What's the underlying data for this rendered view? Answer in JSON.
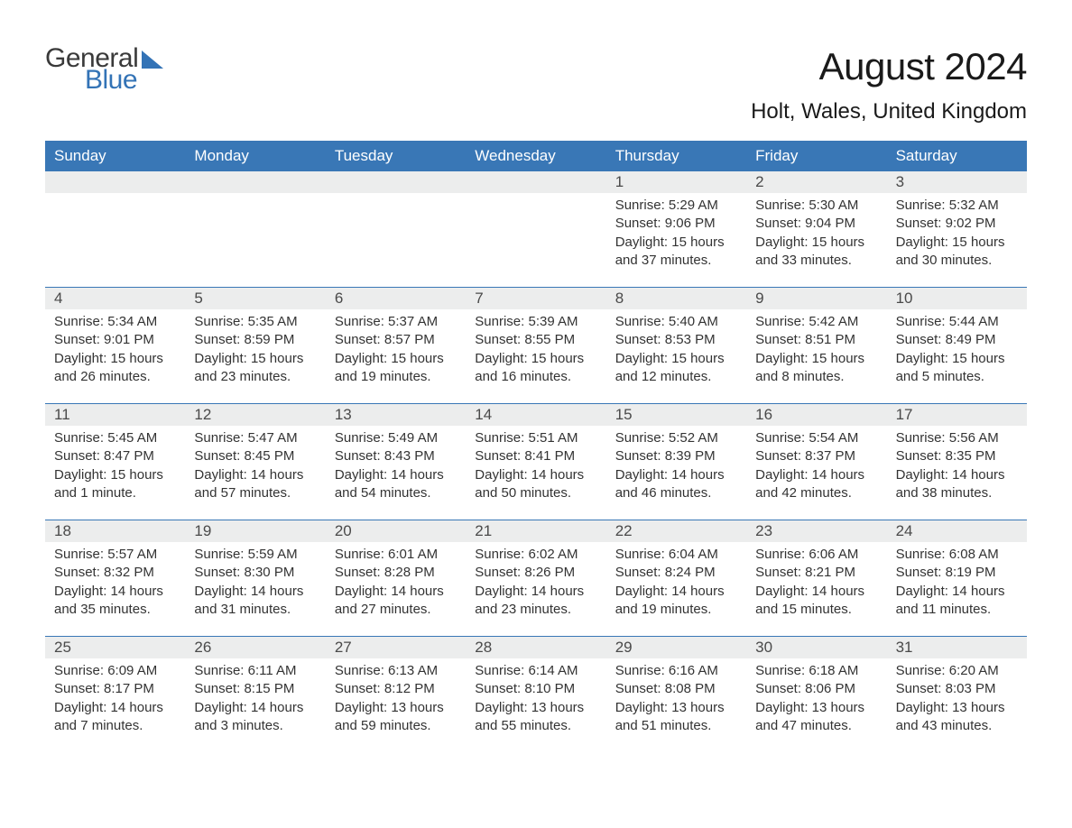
{
  "brand": {
    "word1": "General",
    "word2": "Blue",
    "accent_color": "#3373b6",
    "text_color": "#3a3a3a"
  },
  "header": {
    "month_title": "August 2024",
    "location": "Holt, Wales, United Kingdom"
  },
  "calendar": {
    "day_names": [
      "Sunday",
      "Monday",
      "Tuesday",
      "Wednesday",
      "Thursday",
      "Friday",
      "Saturday"
    ],
    "header_bg": "#3977b6",
    "header_fg": "#ffffff",
    "date_bar_bg": "#eceded",
    "week_border_color": "#3977b6",
    "text_color": "#333333",
    "font_size_body": 15,
    "weeks": [
      [
        null,
        null,
        null,
        null,
        {
          "date": "1",
          "sunrise": "Sunrise: 5:29 AM",
          "sunset": "Sunset: 9:06 PM",
          "daylight": "Daylight: 15 hours and 37 minutes."
        },
        {
          "date": "2",
          "sunrise": "Sunrise: 5:30 AM",
          "sunset": "Sunset: 9:04 PM",
          "daylight": "Daylight: 15 hours and 33 minutes."
        },
        {
          "date": "3",
          "sunrise": "Sunrise: 5:32 AM",
          "sunset": "Sunset: 9:02 PM",
          "daylight": "Daylight: 15 hours and 30 minutes."
        }
      ],
      [
        {
          "date": "4",
          "sunrise": "Sunrise: 5:34 AM",
          "sunset": "Sunset: 9:01 PM",
          "daylight": "Daylight: 15 hours and 26 minutes."
        },
        {
          "date": "5",
          "sunrise": "Sunrise: 5:35 AM",
          "sunset": "Sunset: 8:59 PM",
          "daylight": "Daylight: 15 hours and 23 minutes."
        },
        {
          "date": "6",
          "sunrise": "Sunrise: 5:37 AM",
          "sunset": "Sunset: 8:57 PM",
          "daylight": "Daylight: 15 hours and 19 minutes."
        },
        {
          "date": "7",
          "sunrise": "Sunrise: 5:39 AM",
          "sunset": "Sunset: 8:55 PM",
          "daylight": "Daylight: 15 hours and 16 minutes."
        },
        {
          "date": "8",
          "sunrise": "Sunrise: 5:40 AM",
          "sunset": "Sunset: 8:53 PM",
          "daylight": "Daylight: 15 hours and 12 minutes."
        },
        {
          "date": "9",
          "sunrise": "Sunrise: 5:42 AM",
          "sunset": "Sunset: 8:51 PM",
          "daylight": "Daylight: 15 hours and 8 minutes."
        },
        {
          "date": "10",
          "sunrise": "Sunrise: 5:44 AM",
          "sunset": "Sunset: 8:49 PM",
          "daylight": "Daylight: 15 hours and 5 minutes."
        }
      ],
      [
        {
          "date": "11",
          "sunrise": "Sunrise: 5:45 AM",
          "sunset": "Sunset: 8:47 PM",
          "daylight": "Daylight: 15 hours and 1 minute."
        },
        {
          "date": "12",
          "sunrise": "Sunrise: 5:47 AM",
          "sunset": "Sunset: 8:45 PM",
          "daylight": "Daylight: 14 hours and 57 minutes."
        },
        {
          "date": "13",
          "sunrise": "Sunrise: 5:49 AM",
          "sunset": "Sunset: 8:43 PM",
          "daylight": "Daylight: 14 hours and 54 minutes."
        },
        {
          "date": "14",
          "sunrise": "Sunrise: 5:51 AM",
          "sunset": "Sunset: 8:41 PM",
          "daylight": "Daylight: 14 hours and 50 minutes."
        },
        {
          "date": "15",
          "sunrise": "Sunrise: 5:52 AM",
          "sunset": "Sunset: 8:39 PM",
          "daylight": "Daylight: 14 hours and 46 minutes."
        },
        {
          "date": "16",
          "sunrise": "Sunrise: 5:54 AM",
          "sunset": "Sunset: 8:37 PM",
          "daylight": "Daylight: 14 hours and 42 minutes."
        },
        {
          "date": "17",
          "sunrise": "Sunrise: 5:56 AM",
          "sunset": "Sunset: 8:35 PM",
          "daylight": "Daylight: 14 hours and 38 minutes."
        }
      ],
      [
        {
          "date": "18",
          "sunrise": "Sunrise: 5:57 AM",
          "sunset": "Sunset: 8:32 PM",
          "daylight": "Daylight: 14 hours and 35 minutes."
        },
        {
          "date": "19",
          "sunrise": "Sunrise: 5:59 AM",
          "sunset": "Sunset: 8:30 PM",
          "daylight": "Daylight: 14 hours and 31 minutes."
        },
        {
          "date": "20",
          "sunrise": "Sunrise: 6:01 AM",
          "sunset": "Sunset: 8:28 PM",
          "daylight": "Daylight: 14 hours and 27 minutes."
        },
        {
          "date": "21",
          "sunrise": "Sunrise: 6:02 AM",
          "sunset": "Sunset: 8:26 PM",
          "daylight": "Daylight: 14 hours and 23 minutes."
        },
        {
          "date": "22",
          "sunrise": "Sunrise: 6:04 AM",
          "sunset": "Sunset: 8:24 PM",
          "daylight": "Daylight: 14 hours and 19 minutes."
        },
        {
          "date": "23",
          "sunrise": "Sunrise: 6:06 AM",
          "sunset": "Sunset: 8:21 PM",
          "daylight": "Daylight: 14 hours and 15 minutes."
        },
        {
          "date": "24",
          "sunrise": "Sunrise: 6:08 AM",
          "sunset": "Sunset: 8:19 PM",
          "daylight": "Daylight: 14 hours and 11 minutes."
        }
      ],
      [
        {
          "date": "25",
          "sunrise": "Sunrise: 6:09 AM",
          "sunset": "Sunset: 8:17 PM",
          "daylight": "Daylight: 14 hours and 7 minutes."
        },
        {
          "date": "26",
          "sunrise": "Sunrise: 6:11 AM",
          "sunset": "Sunset: 8:15 PM",
          "daylight": "Daylight: 14 hours and 3 minutes."
        },
        {
          "date": "27",
          "sunrise": "Sunrise: 6:13 AM",
          "sunset": "Sunset: 8:12 PM",
          "daylight": "Daylight: 13 hours and 59 minutes."
        },
        {
          "date": "28",
          "sunrise": "Sunrise: 6:14 AM",
          "sunset": "Sunset: 8:10 PM",
          "daylight": "Daylight: 13 hours and 55 minutes."
        },
        {
          "date": "29",
          "sunrise": "Sunrise: 6:16 AM",
          "sunset": "Sunset: 8:08 PM",
          "daylight": "Daylight: 13 hours and 51 minutes."
        },
        {
          "date": "30",
          "sunrise": "Sunrise: 6:18 AM",
          "sunset": "Sunset: 8:06 PM",
          "daylight": "Daylight: 13 hours and 47 minutes."
        },
        {
          "date": "31",
          "sunrise": "Sunrise: 6:20 AM",
          "sunset": "Sunset: 8:03 PM",
          "daylight": "Daylight: 13 hours and 43 minutes."
        }
      ]
    ]
  }
}
